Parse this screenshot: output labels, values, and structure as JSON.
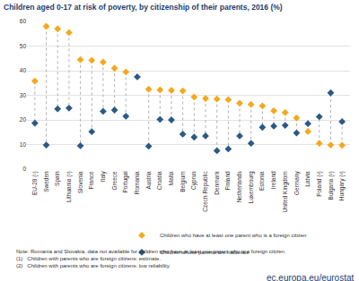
{
  "chart_data": {
    "type": "dot",
    "title": "Children aged 0-17 at risk of poverty, by citizenship of their parents, 2016 (%)",
    "categories": [
      "EU-28 (¹)",
      "Sweden",
      "Spain",
      "Lithuania (²)",
      "Slovenia",
      "France",
      "Italy",
      "Greece",
      "Portugal",
      "Romania",
      "Austria",
      "Croatia",
      "Malta",
      "Belgium",
      "Cyprus",
      "Czech Republic",
      "Denmark",
      "Finland",
      "Netherlands",
      "Luxembourg",
      "Estonia",
      "Ireland",
      "United Kingdom",
      "Germany",
      "Latvia",
      "Poland (²)",
      "Bulgaria (²)",
      "Hungary (²)"
    ],
    "series": [
      {
        "name": "Children who have at least one parent who is a foreign citizen",
        "color": "#f5a81c",
        "marker": "diamond",
        "values": [
          35.8,
          58,
          57,
          55.5,
          44.5,
          44.2,
          43.5,
          41,
          39.5,
          null,
          32.5,
          32.2,
          32,
          31.8,
          29.3,
          28.7,
          28.5,
          28.2,
          26.8,
          26.3,
          25.7,
          23.7,
          23,
          20.8,
          15.3,
          10.5,
          9.8,
          9.7
        ]
      },
      {
        "name": "Children whose parents are nationals",
        "color": "#2b5a86",
        "marker": "diamond",
        "values": [
          18.7,
          9.8,
          24.5,
          24.8,
          9.5,
          15.2,
          23.5,
          24,
          21.5,
          37.5,
          9.3,
          20.2,
          20,
          14.2,
          13,
          13.5,
          7.5,
          8.2,
          13.5,
          10.5,
          17,
          17.5,
          17.8,
          14.7,
          18.5,
          21.3,
          31,
          19.3
        ]
      }
    ],
    "ylim": [
      0,
      60
    ],
    "yticks": [
      0,
      10,
      20,
      30,
      40,
      50,
      60
    ],
    "grid": true,
    "legend": "bottom",
    "notes": [
      "Note: Romania and Slovakia, data not available for children who have at least one parent who is a foreign citizen.",
      "(1)   Children with parents who are foreign citizens: estimate.",
      "(2)   Children with parents who are foreign citizens: low reliability."
    ],
    "source": "ec.europa.eu/eurostat"
  }
}
